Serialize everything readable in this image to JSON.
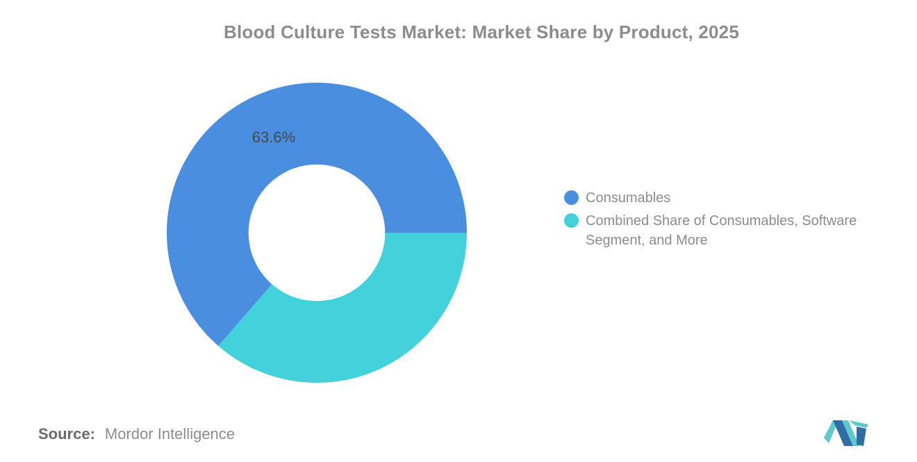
{
  "title": "Blood Culture Tests Market: Market Share by Product, 2025",
  "chart_data": {
    "type": "pie",
    "subtype": "donut",
    "title": "Blood Culture Tests Market: Market Share by Product, 2025",
    "units": "percent",
    "series": [
      {
        "name": "Consumables",
        "value": 63.6,
        "color": "#4A8EE0",
        "slice_label": "63.6%"
      },
      {
        "name": "Combined Share of Consumables, Software Segment, and More",
        "value": 36.4,
        "color": "#43D1DB",
        "slice_label": ""
      }
    ],
    "inner_radius_ratio": 0.455,
    "start_angle_deg": 0,
    "draw_order": [
      1,
      0
    ],
    "label_radius": 150,
    "label_color": "#474747",
    "legend_position": "right",
    "grid": false
  },
  "legend": {
    "items": [
      {
        "label": "Consumables",
        "color": "#4A8EE0"
      },
      {
        "label": "Combined Share of Consumables, Software Segment, and More",
        "color": "#43D1DB"
      }
    ]
  },
  "source": {
    "label": "Source:",
    "text": "Mordor Intelligence"
  },
  "logo": {
    "name": "Mordor Intelligence logo",
    "blue": "#2E6DA6",
    "teal": "#5EC8CC"
  }
}
